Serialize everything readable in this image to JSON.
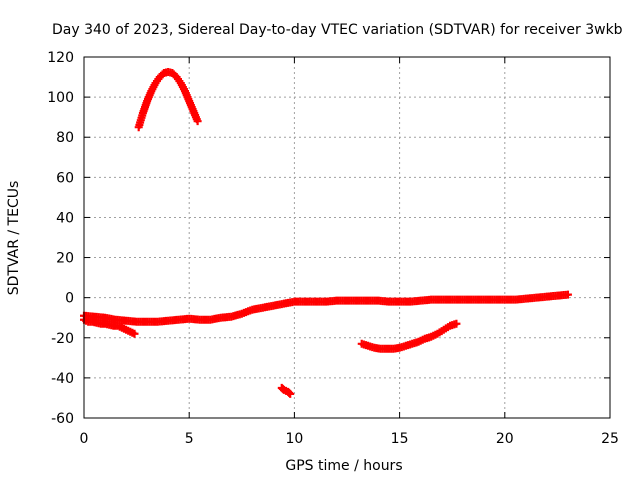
{
  "chart_data": {
    "type": "scatter",
    "title": "Day 340 of 2023, Sidereal Day-to-day VTEC variation (SDTVAR) for receiver 3wkb",
    "xlabel": "GPS time / hours",
    "ylabel": "SDTVAR / TECUs",
    "xlim": [
      0,
      25
    ],
    "ylim": [
      -60,
      120
    ],
    "xticks": [
      0,
      5,
      10,
      15,
      20,
      25
    ],
    "yticks": [
      -60,
      -40,
      -20,
      0,
      20,
      40,
      60,
      80,
      100,
      120
    ],
    "grid": true,
    "marker_color": "#ff0000",
    "series": [
      {
        "name": "arc-high",
        "x": [
          2.6,
          2.8,
          3.0,
          3.2,
          3.4,
          3.6,
          3.8,
          4.0,
          4.2,
          4.4,
          4.6,
          4.8,
          5.0,
          5.2,
          5.4
        ],
        "y": [
          85,
          92,
          98,
          103,
          107,
          110,
          112,
          112.5,
          112,
          110,
          107,
          103,
          98,
          93,
          88
        ]
      },
      {
        "name": "arc-main-early",
        "x": [
          0.0,
          0.2,
          0.4,
          0.6,
          0.8,
          1.0,
          1.2,
          1.4,
          1.6,
          1.8,
          2.0,
          2.2,
          2.4
        ],
        "y": [
          -11,
          -12,
          -12,
          -12.5,
          -13,
          -13,
          -13.5,
          -14,
          -14,
          -15,
          -16,
          -17,
          -18
        ]
      },
      {
        "name": "arc-main",
        "x": [
          0.0,
          0.5,
          1.0,
          1.5,
          2.0,
          2.5,
          3.0,
          3.5,
          4.0,
          4.5,
          5.0,
          5.5,
          6.0,
          6.5,
          7.0,
          7.5,
          8.0,
          8.5,
          9.0,
          9.5,
          10.0,
          10.5,
          11.0,
          11.5,
          12.0,
          12.5,
          13.0,
          13.5,
          14.0,
          14.5,
          15.0,
          15.5,
          16.0,
          16.5,
          17.0,
          17.5,
          18.0,
          18.5,
          19.0,
          19.5,
          20.0,
          20.5,
          21.0,
          21.5,
          22.0,
          22.5,
          23.0
        ],
        "y": [
          -9,
          -9.5,
          -10,
          -11,
          -11.5,
          -12,
          -12,
          -12,
          -11.5,
          -11,
          -10.5,
          -11,
          -11,
          -10,
          -9.5,
          -8,
          -6,
          -5,
          -4,
          -3,
          -2,
          -2,
          -2,
          -2,
          -1.5,
          -1.5,
          -1.5,
          -1.5,
          -1.5,
          -2,
          -2,
          -2,
          -1.5,
          -1,
          -1,
          -1,
          -1,
          -1,
          -1,
          -1,
          -1,
          -1,
          -0.5,
          0,
          0.5,
          1,
          1.5
        ]
      },
      {
        "name": "arc-mid",
        "x": [
          13.2,
          13.5,
          13.8,
          14.1,
          14.4,
          14.7,
          15.0,
          15.3,
          15.6,
          15.9,
          16.2,
          16.5,
          16.8,
          17.1,
          17.4,
          17.7
        ],
        "y": [
          -23,
          -24,
          -25,
          -25.5,
          -25.5,
          -25.5,
          -25,
          -24,
          -23,
          -22,
          -20.5,
          -19.5,
          -18,
          -16,
          -14,
          -13
        ]
      },
      {
        "name": "arc-low",
        "x": [
          9.4,
          9.5,
          9.6,
          9.7,
          9.8
        ],
        "y": [
          -45,
          -46,
          -46.5,
          -47,
          -48
        ]
      }
    ]
  }
}
